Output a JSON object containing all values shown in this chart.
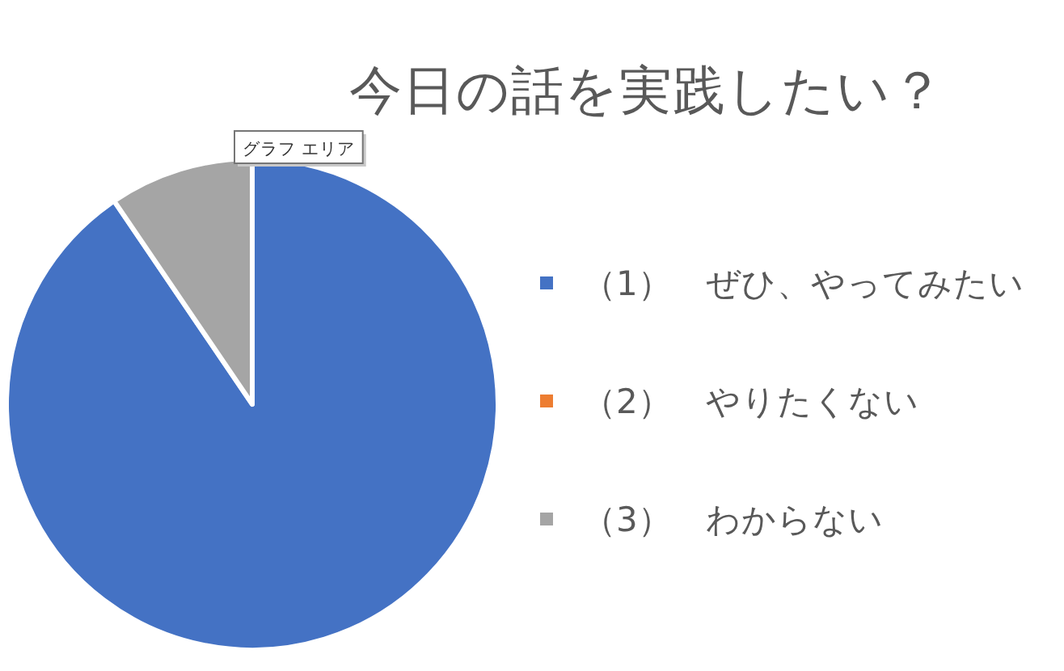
{
  "chart_data": {
    "type": "pie",
    "title": "今日の話を実践したい？",
    "categories": [
      "（1）　ぜひ、やってみたい",
      "（2）　やりたくない",
      "（3）　わからない"
    ],
    "values": [
      90.5,
      0,
      9.5
    ],
    "colors": [
      "#4472c4",
      "#ed7d31",
      "#a5a5a5"
    ],
    "legend": "right",
    "annotations": [
      "グラフ エリア"
    ]
  }
}
